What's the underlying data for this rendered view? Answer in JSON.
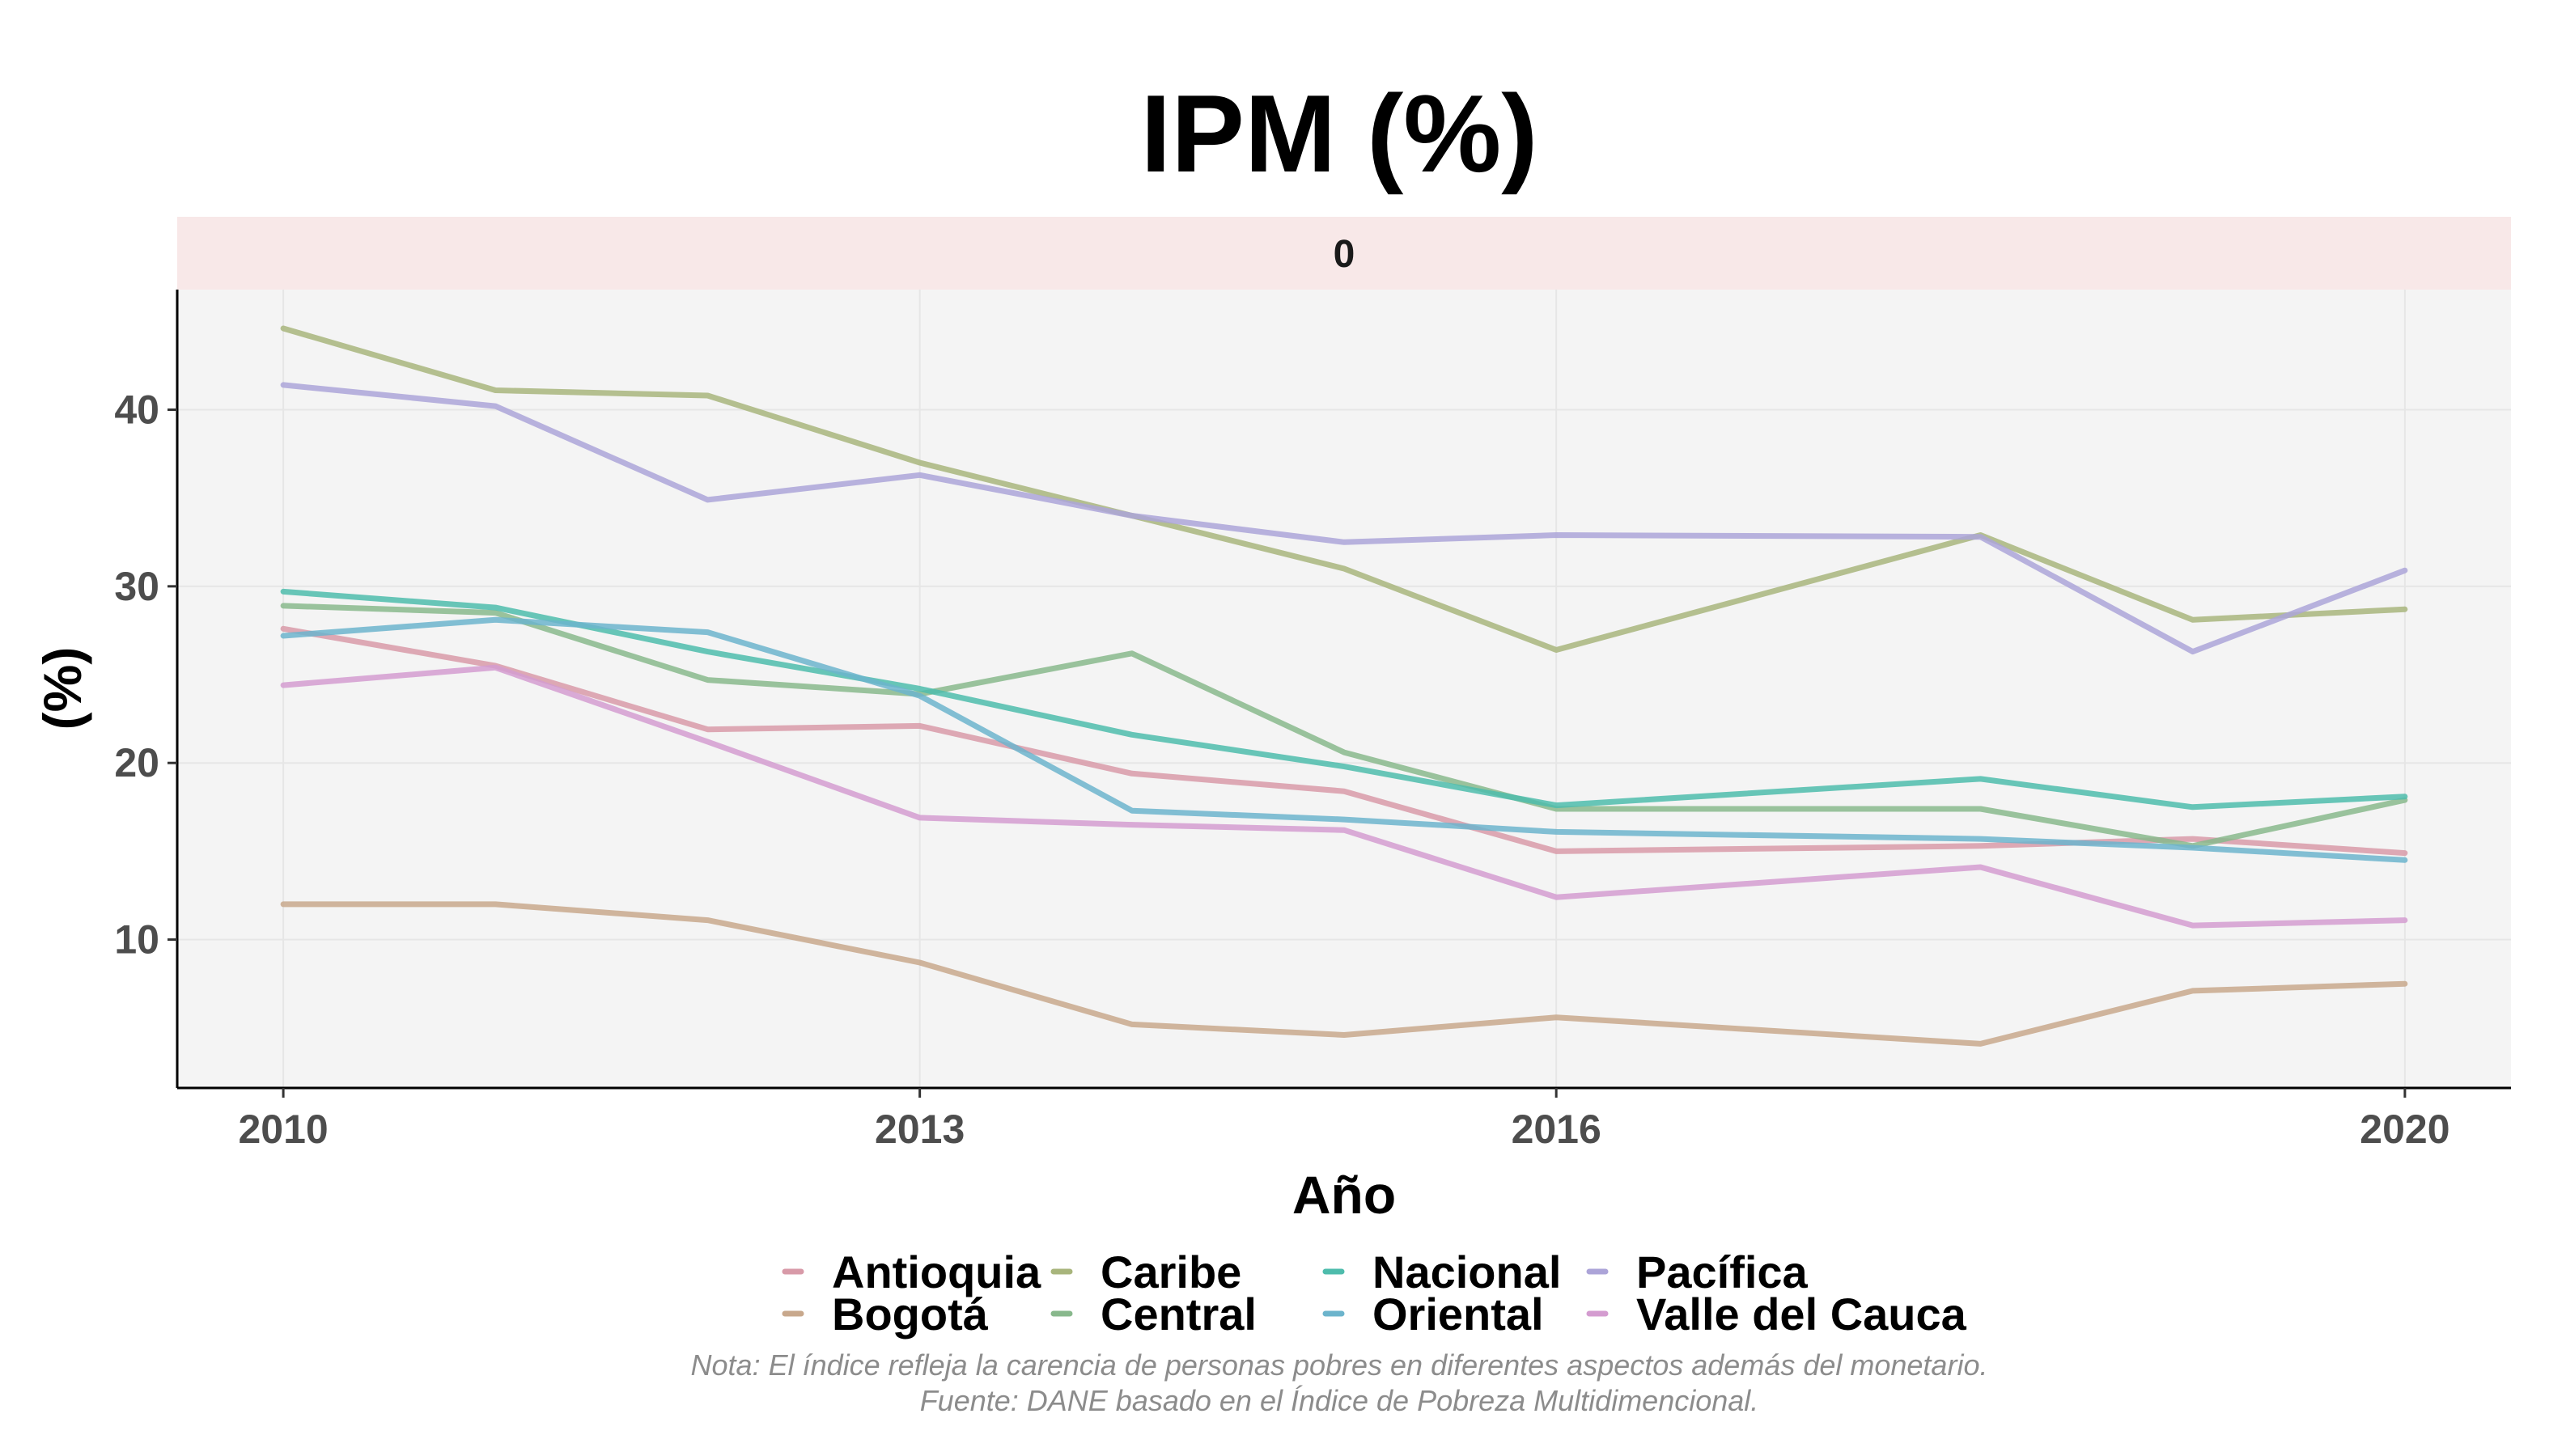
{
  "chart_data": {
    "type": "line",
    "title": "IPM (%)",
    "facet_label": "0",
    "xlabel": "Año",
    "ylabel": "(%)",
    "xlim": [
      2009.5,
      2020.5
    ],
    "ylim": [
      1.6,
      46.8
    ],
    "x_ticks": [
      2010,
      2013,
      2016,
      2020
    ],
    "y_ticks": [
      10,
      20,
      30,
      40
    ],
    "grid": true,
    "legend_position": "bottom",
    "x": [
      2010,
      2011,
      2012,
      2013,
      2014,
      2015,
      2016,
      2018,
      2019,
      2020
    ],
    "series": [
      {
        "name": "Antioquia",
        "color": "#d89aa8",
        "values": [
          27.6,
          25.5,
          21.9,
          22.1,
          19.4,
          18.4,
          15.0,
          15.3,
          15.7,
          14.9
        ]
      },
      {
        "name": "Bogotá",
        "color": "#c8a88c",
        "values": [
          12.0,
          12.0,
          11.1,
          8.7,
          5.2,
          4.6,
          5.6,
          4.1,
          7.1,
          7.5
        ]
      },
      {
        "name": "Caribe",
        "color": "#a8b57c",
        "values": [
          44.6,
          41.1,
          40.8,
          37.0,
          34.0,
          31.0,
          26.4,
          32.9,
          28.1,
          28.7
        ]
      },
      {
        "name": "Central",
        "color": "#88b88c",
        "values": [
          28.9,
          28.5,
          24.7,
          23.9,
          26.2,
          20.6,
          17.4,
          17.4,
          15.3,
          17.9
        ]
      },
      {
        "name": "Nacional",
        "color": "#4ebcac",
        "values": [
          29.7,
          28.8,
          26.3,
          24.2,
          21.6,
          19.8,
          17.6,
          19.1,
          17.5,
          18.1
        ]
      },
      {
        "name": "Oriental",
        "color": "#6cb4cc",
        "values": [
          27.2,
          28.1,
          27.4,
          23.8,
          17.3,
          16.8,
          16.1,
          15.7,
          15.2,
          14.5
        ]
      },
      {
        "name": "Pacífica",
        "color": "#aca4d8",
        "values": [
          41.4,
          40.2,
          34.9,
          36.3,
          34.0,
          32.5,
          32.9,
          32.8,
          26.3,
          30.9
        ]
      },
      {
        "name": "Valle del Cauca",
        "color": "#d49cd0",
        "values": [
          24.4,
          25.4,
          21.2,
          16.9,
          16.5,
          16.2,
          12.4,
          14.1,
          10.8,
          11.1
        ]
      }
    ],
    "caption_lines": [
      "Nota: El índice refleja la carencia de personas pobres en diferentes aspectos además del monetario.",
      "Fuente: DANE basado en el Índice de Pobreza Multidimencional."
    ]
  }
}
